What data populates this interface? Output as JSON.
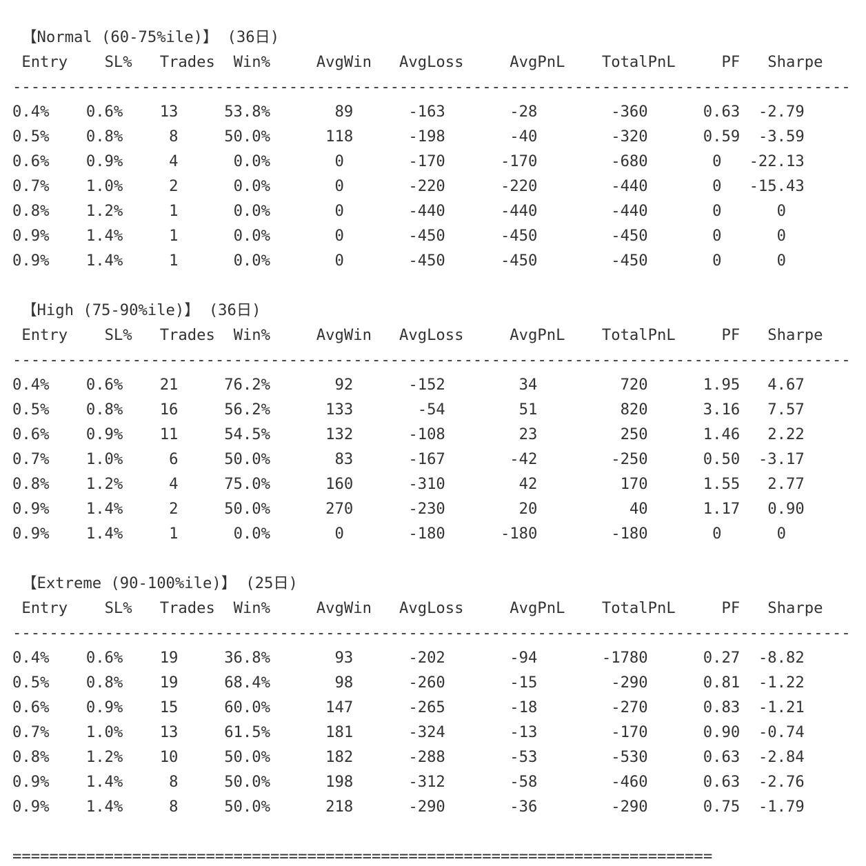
{
  "page": {
    "background_color": "#ffffff",
    "text_color": "#333333"
  },
  "columns": [
    "Entry",
    "SL%",
    "Trades",
    "Win%",
    "AvgWin",
    "AvgLoss",
    "AvgPnL",
    "TotalPnL",
    "PF",
    "Sharpe"
  ],
  "tables": [
    {
      "title": "【Normal (60-75%ile)】",
      "period": "(36日)",
      "rows": [
        [
          "0.4%",
          "0.6%",
          "13",
          "53.8%",
          "89",
          "-163",
          "-28",
          "-360",
          "0.63",
          "-2.79"
        ],
        [
          "0.5%",
          "0.8%",
          "8",
          "50.0%",
          "118",
          "-198",
          "-40",
          "-320",
          "0.59",
          "-3.59"
        ],
        [
          "0.6%",
          "0.9%",
          "4",
          "0.0%",
          "0",
          "-170",
          "-170",
          "-680",
          "0",
          "-22.13"
        ],
        [
          "0.7%",
          "1.0%",
          "2",
          "0.0%",
          "0",
          "-220",
          "-220",
          "-440",
          "0",
          "-15.43"
        ],
        [
          "0.8%",
          "1.2%",
          "1",
          "0.0%",
          "0",
          "-440",
          "-440",
          "-440",
          "0",
          "0"
        ],
        [
          "0.9%",
          "1.4%",
          "1",
          "0.0%",
          "0",
          "-450",
          "-450",
          "-450",
          "0",
          "0"
        ],
        [
          "0.9%",
          "1.4%",
          "1",
          "0.0%",
          "0",
          "-450",
          "-450",
          "-450",
          "0",
          "0"
        ]
      ]
    },
    {
      "title": "【High (75-90%ile)】",
      "period": "(36日)",
      "rows": [
        [
          "0.4%",
          "0.6%",
          "21",
          "76.2%",
          "92",
          "-152",
          "34",
          "720",
          "1.95",
          "4.67"
        ],
        [
          "0.5%",
          "0.8%",
          "16",
          "56.2%",
          "133",
          "-54",
          "51",
          "820",
          "3.16",
          "7.57"
        ],
        [
          "0.6%",
          "0.9%",
          "11",
          "54.5%",
          "132",
          "-108",
          "23",
          "250",
          "1.46",
          "2.22"
        ],
        [
          "0.7%",
          "1.0%",
          "6",
          "50.0%",
          "83",
          "-167",
          "-42",
          "-250",
          "0.50",
          "-3.17"
        ],
        [
          "0.8%",
          "1.2%",
          "4",
          "75.0%",
          "160",
          "-310",
          "42",
          "170",
          "1.55",
          "2.77"
        ],
        [
          "0.9%",
          "1.4%",
          "2",
          "50.0%",
          "270",
          "-230",
          "20",
          "40",
          "1.17",
          "0.90"
        ],
        [
          "0.9%",
          "1.4%",
          "1",
          "0.0%",
          "0",
          "-180",
          "-180",
          "-180",
          "0",
          "0"
        ]
      ]
    },
    {
      "title": "【Extreme (90-100%ile)】",
      "period": "(25日)",
      "rows": [
        [
          "0.4%",
          "0.6%",
          "19",
          "36.8%",
          "93",
          "-202",
          "-94",
          "-1780",
          "0.27",
          "-8.82"
        ],
        [
          "0.5%",
          "0.8%",
          "19",
          "68.4%",
          "98",
          "-260",
          "-15",
          "-290",
          "0.81",
          "-1.22"
        ],
        [
          "0.6%",
          "0.9%",
          "15",
          "60.0%",
          "147",
          "-265",
          "-18",
          "-270",
          "0.83",
          "-1.21"
        ],
        [
          "0.7%",
          "1.0%",
          "13",
          "61.5%",
          "181",
          "-324",
          "-13",
          "-170",
          "0.90",
          "-0.74"
        ],
        [
          "0.8%",
          "1.2%",
          "10",
          "50.0%",
          "182",
          "-288",
          "-53",
          "-530",
          "0.63",
          "-2.84"
        ],
        [
          "0.9%",
          "1.4%",
          "8",
          "50.0%",
          "198",
          "-312",
          "-58",
          "-460",
          "0.63",
          "-2.76"
        ],
        [
          "0.9%",
          "1.4%",
          "8",
          "50.0%",
          "218",
          "-290",
          "-36",
          "-290",
          "0.75",
          "-1.79"
        ]
      ]
    }
  ],
  "separators": {
    "dash_char": "-",
    "dash_count": 91,
    "equals_char": "=",
    "equals_count": 76
  }
}
